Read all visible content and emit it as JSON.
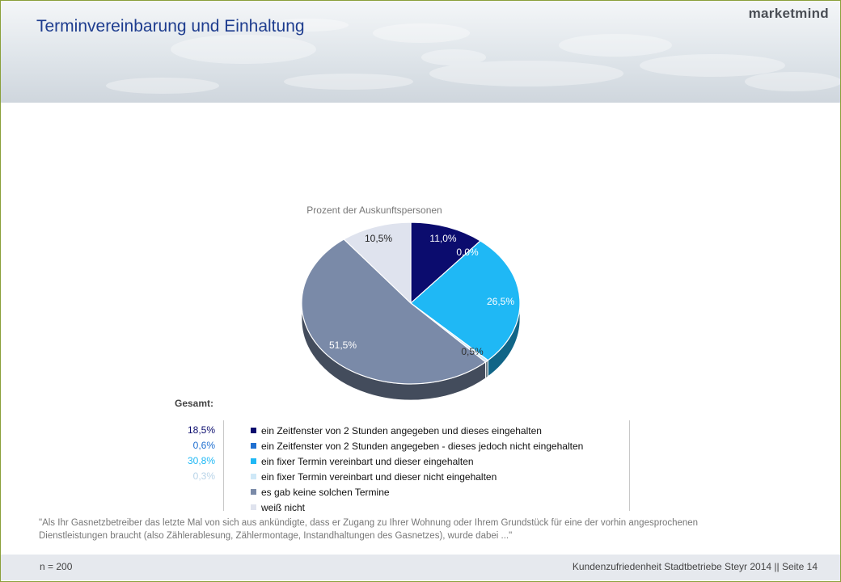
{
  "header": {
    "title": "Terminvereinbarung und Einhaltung",
    "logo": "marketmind"
  },
  "chart_data": {
    "type": "pie",
    "title": "Prozent der Auskunftspersonen",
    "labels": [
      "ein Zeitfenster von 2 Stunden angegeben und dieses eingehalten",
      "ein Zeitfenster von 2 Stunden angegeben - dieses jedoch nicht eingehalten",
      "ein fixer Termin vereinbart und dieser eingehalten",
      "ein fixer Termin vereinbart und dieser nicht eingehalten",
      "es gab keine solchen Termine",
      "weiß nicht"
    ],
    "values": [
      11.0,
      0.0,
      26.5,
      0.5,
      51.5,
      10.5
    ],
    "value_labels": [
      "11,0%",
      "0,0%",
      "26,5%",
      "0,5%",
      "51,5%",
      "10,5%"
    ],
    "colors": [
      "#0b0c6e",
      "#1f6fd0",
      "#1fb8f5",
      "#cfe8f7",
      "#7a8aa8",
      "#dfe3ee"
    ],
    "legend_placement": "bottom"
  },
  "gesamt": {
    "label": "Gesamt:",
    "values": [
      {
        "text": "18,5%",
        "color": "#0b0c6e"
      },
      {
        "text": "0,6%",
        "color": "#1f6fd0"
      },
      {
        "text": "30,8%",
        "color": "#1fb8f5"
      },
      {
        "text": "0,3%",
        "color": "#b8d4e8"
      }
    ]
  },
  "question": "\"Als Ihr Gasnetzbetreiber das letzte Mal von sich aus ankündigte, dass er Zugang zu Ihrer Wohnung oder Ihrem Grundstück für eine der vorhin angesprochenen Dienstleistungen braucht (also Zählerablesung, Zählermontage, Instandhaltungen des Gasnetzes), wurde dabei ...\"",
  "footer": {
    "n": "n = 200",
    "source": "Kundenzufriedenheit Stadtbetriebe Steyr 2014 || Seite 14"
  }
}
